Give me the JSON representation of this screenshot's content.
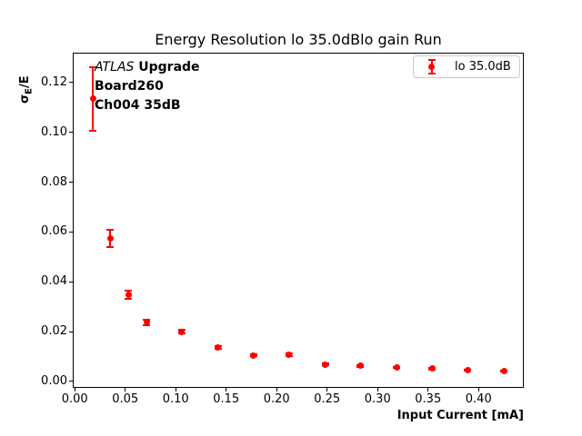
{
  "figure": {
    "title": "Energy Resolution lo 35.0dBlo gain Run",
    "background_color": "#ffffff"
  },
  "axes": {
    "xlabel": "Input Current [mA]",
    "ylabel": {
      "symbol": "σ",
      "subscript": "E",
      "suffix": "/E"
    },
    "x_tick_labels": [
      "0.00",
      "0.05",
      "0.10",
      "0.15",
      "0.20",
      "0.25",
      "0.30",
      "0.35",
      "0.40"
    ],
    "y_tick_labels": [
      "0.00",
      "0.02",
      "0.04",
      "0.06",
      "0.08",
      "0.10",
      "0.12"
    ]
  },
  "annotation": {
    "line1_italic": "ATLAS",
    "line1_bold": " Upgrade",
    "line2": "Board260",
    "line3": "Ch004 35dB"
  },
  "legend": {
    "label": "lo 35.0dB"
  },
  "colors": {
    "series": "#ff0000",
    "grid": "#b0b0b0",
    "spine": "#000000",
    "legend_border": "#c9c9c9",
    "text": "#000000"
  },
  "chart_data": {
    "type": "scatter",
    "title": "Energy Resolution lo 35.0dBlo gain Run",
    "xlabel": "Input Current [mA]",
    "ylabel": "sigma_E/E",
    "grid": true,
    "legend_position": "upper right",
    "xlim": [
      -0.002,
      0.4448
    ],
    "ylim": [
      -0.0026,
      0.132
    ],
    "x_ticks": [
      0.0,
      0.05,
      0.1,
      0.15,
      0.2,
      0.25,
      0.3,
      0.35,
      0.4
    ],
    "y_ticks": [
      0.0,
      0.02,
      0.04,
      0.06,
      0.08,
      0.1,
      0.12
    ],
    "series": [
      {
        "name": "lo 35.0dB",
        "color": "#ff0000",
        "marker": "circle-with-errorbars",
        "x": [
          0.018,
          0.035,
          0.053,
          0.071,
          0.106,
          0.142,
          0.177,
          0.212,
          0.248,
          0.283,
          0.319,
          0.354,
          0.389,
          0.425
        ],
        "y": [
          0.1135,
          0.0574,
          0.0347,
          0.0237,
          0.02,
          0.0137,
          0.0105,
          0.0107,
          0.0068,
          0.0062,
          0.0056,
          0.0051,
          0.0045,
          0.0041
        ],
        "yerr": [
          0.0127,
          0.0036,
          0.0017,
          0.001,
          0.0007,
          0.0005,
          0.0004,
          0.0004,
          0.0003,
          0.0003,
          0.0003,
          0.0003,
          0.0003,
          0.0003
        ]
      }
    ]
  }
}
